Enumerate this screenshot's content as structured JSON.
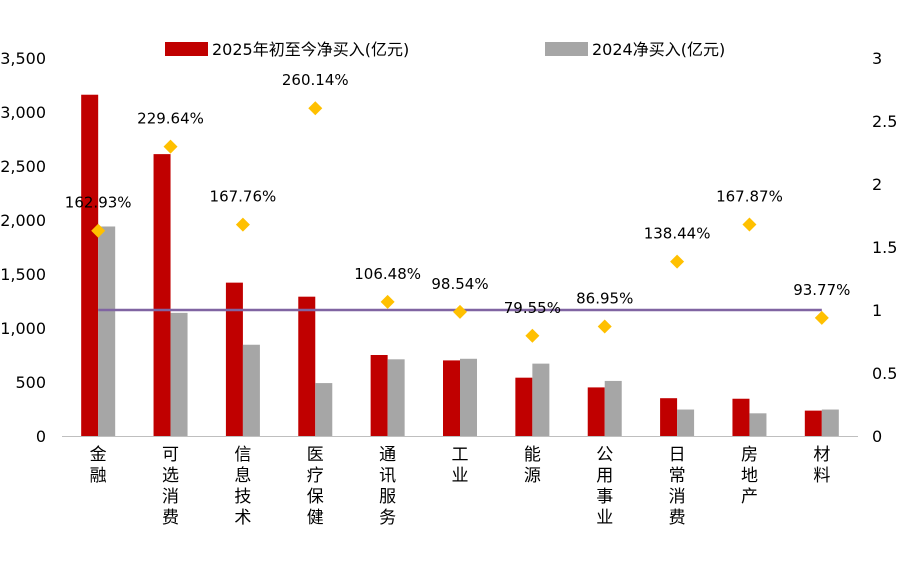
{
  "chart_data": {
    "type": "bar",
    "categories": [
      "金融",
      "可选消费",
      "信息技术",
      "医疗保健",
      "通讯服务",
      "工业",
      "能源",
      "公用事业",
      "日常消费",
      "房地产",
      "材料"
    ],
    "series": [
      {
        "name": "2025年初至今净买入(亿元)",
        "axis": "left",
        "color": "#c00000",
        "values": [
          3160,
          2610,
          1420,
          1290,
          750,
          700,
          540,
          450,
          350,
          345,
          235
        ]
      },
      {
        "name": "2024净买入(亿元)",
        "axis": "left",
        "color": "#a6a6a6",
        "values": [
          1940,
          1140,
          845,
          490,
          710,
          715,
          670,
          510,
          245,
          210,
          245
        ]
      },
      {
        "axis": "right",
        "type": "scatter",
        "color": "#ffc000",
        "values": [
          1.6293,
          2.2964,
          1.6776,
          2.6014,
          1.0648,
          0.9854,
          0.7955,
          0.8695,
          1.3844,
          1.6787,
          0.9377
        ],
        "labels": [
          "162.93%",
          "229.64%",
          "167.76%",
          "260.14%",
          "106.48%",
          "98.54%",
          "79.55%",
          "86.95%",
          "138.44%",
          "167.87%",
          "93.77%"
        ]
      }
    ],
    "reference_line": {
      "axis": "right",
      "value": 1,
      "color": "#8064a2"
    },
    "y_left": {
      "lim": [
        0,
        3500
      ],
      "ticks": [
        "0",
        "500",
        "1,000",
        "1,500",
        "2,000",
        "2,500",
        "3,000",
        "3,500"
      ]
    },
    "y_right": {
      "lim": [
        0,
        3
      ],
      "ticks": [
        "0",
        "0.5",
        "1",
        "1.5",
        "2",
        "2.5",
        "3"
      ]
    },
    "legend": "top",
    "grid": false
  }
}
